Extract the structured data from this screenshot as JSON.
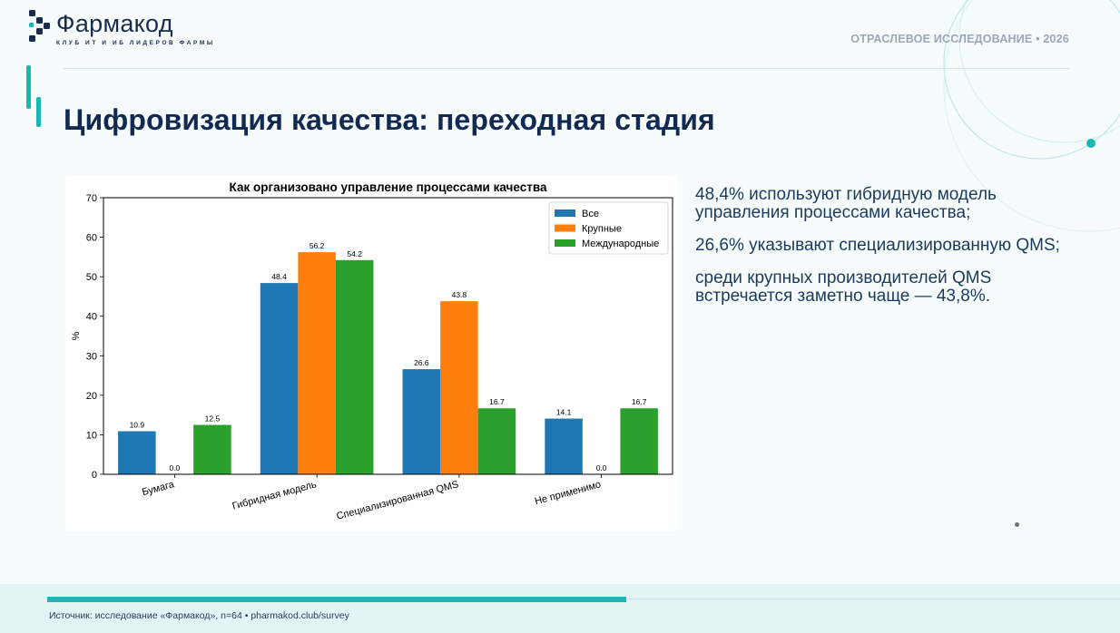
{
  "header": {
    "logo_name": "Фармакод",
    "logo_tagline": "КЛУБ ИТ И ИБ ЛИДЕРОВ ФАРМЫ",
    "study_label": "ОТРАСЛЕВОЕ ИССЛЕДОВАНИЕ • 2026"
  },
  "slide": {
    "title": "Цифровизация качества: переходная стадия"
  },
  "bullets": [
    "48,4% используют гибридную модель управления процессами качества;",
    "26,6% указывают специализированную QMS;",
    "среди крупных производителей QMS встречается заметно чаще — 43,8%."
  ],
  "footer": {
    "source": "Источник: исследование «Фармакод», n=64 • pharmakod.club/survey"
  },
  "colors": {
    "accent": "#1bb7b2",
    "series": [
      "#1f77b4",
      "#ff7f0e",
      "#2ca02c"
    ]
  },
  "chart_data": {
    "type": "bar",
    "title": "Как организовано управление процессами качества",
    "xlabel": "",
    "ylabel": "%",
    "ylim": [
      0,
      70
    ],
    "yticks": [
      0,
      10,
      20,
      30,
      40,
      50,
      60,
      70
    ],
    "categories": [
      "Бумага",
      "Гибридная модель",
      "Специализированная QMS",
      "Не применимо"
    ],
    "series": [
      {
        "name": "Все",
        "values": [
          10.9,
          48.4,
          26.6,
          14.1
        ]
      },
      {
        "name": "Крупные",
        "values": [
          0.0,
          56.2,
          43.8,
          0.0
        ]
      },
      {
        "name": "Международные",
        "values": [
          12.5,
          54.2,
          16.7,
          16.7
        ]
      }
    ],
    "legend_position": "top-right",
    "grid": false
  }
}
